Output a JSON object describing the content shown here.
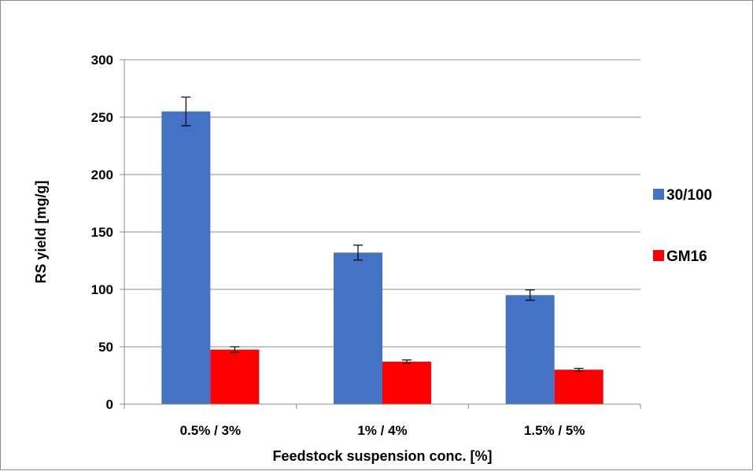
{
  "chart_data": {
    "type": "bar",
    "categories": [
      "0.5% / 3%",
      "1% / 4%",
      "1.5% / 5%"
    ],
    "series": [
      {
        "name": "30/100",
        "color": "#4472c4",
        "values": [
          255,
          132,
          95
        ],
        "errors": [
          12.5,
          6.5,
          4.5
        ]
      },
      {
        "name": "GM16",
        "color": "#ff0000",
        "values": [
          47.5,
          37,
          30
        ],
        "errors": [
          2.5,
          1.5,
          1.2
        ]
      }
    ],
    "xlabel": "Feedstock suspension conc. [%]",
    "ylabel": "RS yield [mg/g]",
    "ylim": [
      0,
      300
    ],
    "yticks": [
      0,
      50,
      100,
      150,
      200,
      250,
      300
    ],
    "grid": true,
    "legend": "right"
  }
}
